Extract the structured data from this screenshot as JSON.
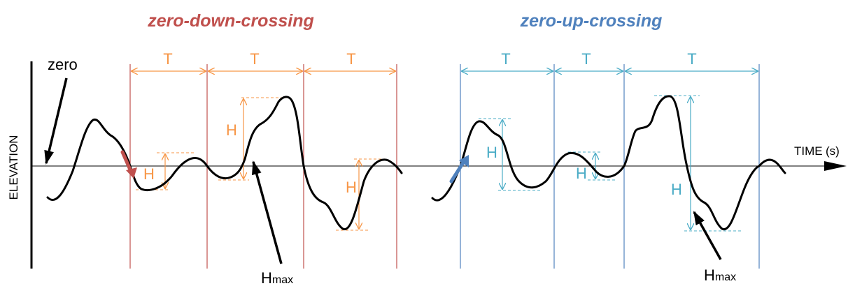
{
  "titles": {
    "down": "zero-down-crossing",
    "up": "zero-up-crossing"
  },
  "labels": {
    "zero": "zero",
    "elevation": "ELEVATION",
    "time": "TIME",
    "time_unit": "(s)",
    "period": "T",
    "height": "H",
    "hmax_main": "H",
    "hmax_sub": "max"
  },
  "colors": {
    "down": "#c0504d",
    "up": "#4f81bd",
    "down_dim": "#f79646",
    "up_dim": "#4bacc6",
    "wave": "#000000"
  }
}
